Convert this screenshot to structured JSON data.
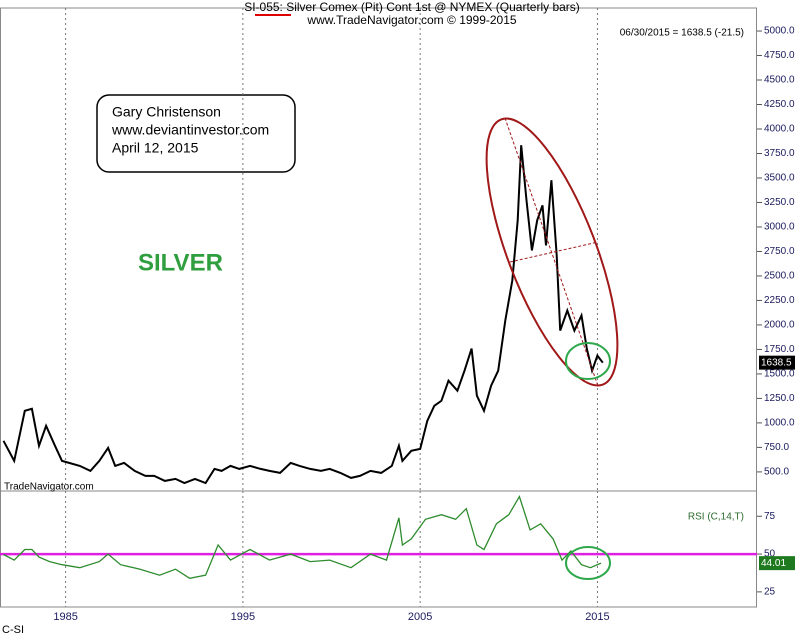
{
  "chart_data": [
    {
      "type": "line",
      "title": "SI-055:  Silver Comex (Pit) Cont 1st @ NYMEX  (Quarterly bars)",
      "subtitle": "www.TradeNavigator.com © 1999-2015",
      "readout": "06/30/2015 = 1638.5 (-21.5)",
      "watermark": "TradeNavigator.com",
      "annotations": [
        "Gary Christenson",
        "www.deviantinvestor.com",
        "April 12, 2015"
      ],
      "label": "SILVER",
      "last_value_label": "1638.5",
      "color": "#000000",
      "x": [
        1981.5,
        1982.1,
        1982.7,
        1983.1,
        1983.5,
        1983.9,
        1984.4,
        1984.8,
        1985.2,
        1985.8,
        1986.4,
        1986.9,
        1987.4,
        1987.8,
        1988.3,
        1988.9,
        1989.5,
        1990.0,
        1990.6,
        1991.2,
        1991.7,
        1992.3,
        1992.9,
        1993.4,
        1993.8,
        1994.3,
        1994.8,
        1995.4,
        1996.0,
        1996.5,
        1997.1,
        1997.7,
        1998.2,
        1998.8,
        1999.4,
        1999.9,
        2000.5,
        2001.1,
        2001.6,
        2002.2,
        2002.8,
        2003.4,
        2003.8,
        2004.0,
        2004.5,
        2005.0,
        2005.4,
        2005.8,
        2006.2,
        2006.6,
        2007.1,
        2007.5,
        2007.9,
        2008.2,
        2008.6,
        2009.0,
        2009.4,
        2009.8,
        2010.2,
        2010.5,
        2010.7,
        2011.0,
        2011.3,
        2011.6,
        2011.9,
        2012.1,
        2012.4,
        2012.7,
        2012.9,
        2013.3,
        2013.7,
        2014.1,
        2014.4,
        2014.7,
        2015.0,
        2015.3
      ],
      "values": [
        817,
        612,
        1124,
        1144,
        766,
        970,
        766,
        612,
        592,
        561,
        510,
        612,
        745,
        561,
        592,
        510,
        459,
        459,
        408,
        428,
        387,
        428,
        387,
        531,
        510,
        561,
        531,
        561,
        531,
        510,
        490,
        592,
        561,
        531,
        510,
        531,
        490,
        439,
        459,
        510,
        490,
        561,
        766,
        612,
        715,
        735,
        1022,
        1175,
        1226,
        1431,
        1329,
        1533,
        1758,
        1278,
        1124,
        1380,
        1533,
        2045,
        2454,
        3068,
        3835,
        3272,
        2761,
        3068,
        3221,
        2812,
        3477,
        2710,
        1942,
        2147,
        1942,
        2096,
        1758,
        1533,
        1687,
        1615
      ],
      "xlim": [
        1981.3,
        2024.0
      ],
      "ylim": [
        305,
        5235
      ],
      "yticks": [
        {
          "value": 500,
          "label": "500.0"
        },
        {
          "value": 750,
          "label": "750.0"
        },
        {
          "value": 1000,
          "label": "1000.0"
        },
        {
          "value": 1250,
          "label": "1250.0"
        },
        {
          "value": 1500,
          "label": "1500.0"
        },
        {
          "value": 1750,
          "label": "1750.0"
        },
        {
          "value": 2000,
          "label": "2000.0"
        },
        {
          "value": 2250,
          "label": "2250.0"
        },
        {
          "value": 2500,
          "label": "2500.0"
        },
        {
          "value": 2750,
          "label": "2750.0"
        },
        {
          "value": 3000,
          "label": "3000.0"
        },
        {
          "value": 3250,
          "label": "3250.0"
        },
        {
          "value": 3500,
          "label": "3500.0"
        },
        {
          "value": 3750,
          "label": "3750.0"
        },
        {
          "value": 4000,
          "label": "4000.0"
        },
        {
          "value": 4250,
          "label": "4250.0"
        },
        {
          "value": 4500,
          "label": "4500.0"
        },
        {
          "value": 4750,
          "label": "4750.0"
        },
        {
          "value": 5000,
          "label": "5000.0"
        }
      ]
    },
    {
      "type": "line",
      "title": "RSI (C,14,T)",
      "last_value_label": "44.01",
      "symbol": "C-SI",
      "color": "#2e8b2e",
      "reference_line": 50,
      "reference_color": "#e020e0",
      "x": [
        1981.5,
        1982.1,
        1982.7,
        1983.1,
        1983.5,
        1984.1,
        1984.8,
        1985.8,
        1986.9,
        1987.4,
        1988.1,
        1989.2,
        1990.3,
        1991.2,
        1992.0,
        1992.9,
        1993.6,
        1994.3,
        1995.4,
        1996.5,
        1997.7,
        1998.8,
        1999.9,
        2001.1,
        2002.2,
        2003.1,
        2003.8,
        2004.0,
        2004.5,
        2005.3,
        2006.2,
        2007.0,
        2007.6,
        2008.2,
        2008.6,
        2009.3,
        2010.0,
        2010.6,
        2011.2,
        2011.8,
        2012.5,
        2013.0,
        2013.5,
        2014.1,
        2014.6,
        2015.2
      ],
      "values": [
        49.7,
        46,
        53,
        53,
        48,
        45,
        43,
        41,
        45,
        50,
        43,
        40,
        36,
        40,
        34,
        36,
        56,
        46,
        53,
        46,
        50,
        45,
        46,
        41,
        50,
        46,
        74,
        56,
        60,
        73,
        76,
        73,
        80,
        56,
        53,
        70,
        76,
        88,
        66,
        70,
        60,
        46,
        52,
        43,
        41,
        44
      ],
      "xlim": [
        1981.3,
        2024.0
      ],
      "ylim": [
        15,
        91.7
      ],
      "yticks": [
        25,
        50,
        75
      ],
      "xticks": [
        1985,
        1995,
        2005,
        2015
      ],
      "grid": true
    }
  ]
}
